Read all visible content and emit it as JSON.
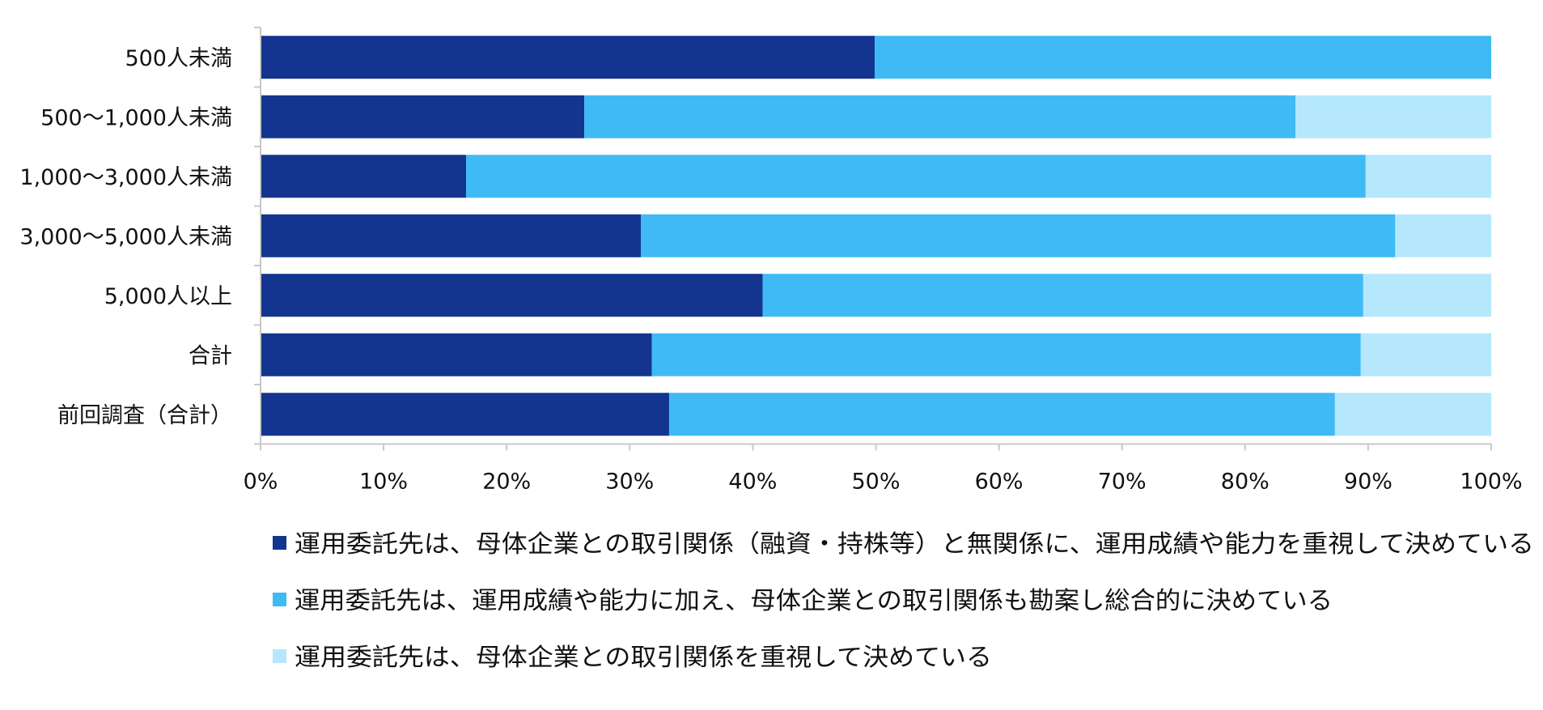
{
  "chart_data": {
    "type": "bar",
    "orientation": "horizontal",
    "stacked": true,
    "percent": true,
    "categories": [
      "500人未満",
      "500～1,000人未満",
      "1,000～3,000人未満",
      "3,000～5,000人未満",
      "5,000人以上",
      "合計",
      "前回調査（合計）"
    ],
    "series": [
      {
        "name": "運用委託先は、母体企業との取引関係（融資・持株等）と無関係に、運用成績や能力を重視して決めている",
        "color": "#13358F",
        "values": [
          49.9,
          26.3,
          16.7,
          30.9,
          40.8,
          31.8,
          33.2
        ]
      },
      {
        "name": "運用委託先は、運用成績や能力に加え、母体企業との取引関係も勘案し総合的に決めている",
        "color": "#40BAF5",
        "values": [
          50.1,
          57.8,
          73.1,
          61.3,
          48.8,
          57.6,
          54.1
        ]
      },
      {
        "name": "運用委託先は、母体企業との取引関係を重視して決めている",
        "color": "#B5E8FC",
        "values": [
          0.0,
          15.9,
          10.2,
          7.8,
          10.4,
          10.6,
          12.7
        ]
      }
    ],
    "xlim": [
      0,
      100
    ],
    "x_ticks": [
      "0%",
      "10%",
      "20%",
      "30%",
      "40%",
      "50%",
      "60%",
      "70%",
      "80%",
      "90%",
      "100%"
    ],
    "grid": false,
    "legend_position": "bottom"
  }
}
